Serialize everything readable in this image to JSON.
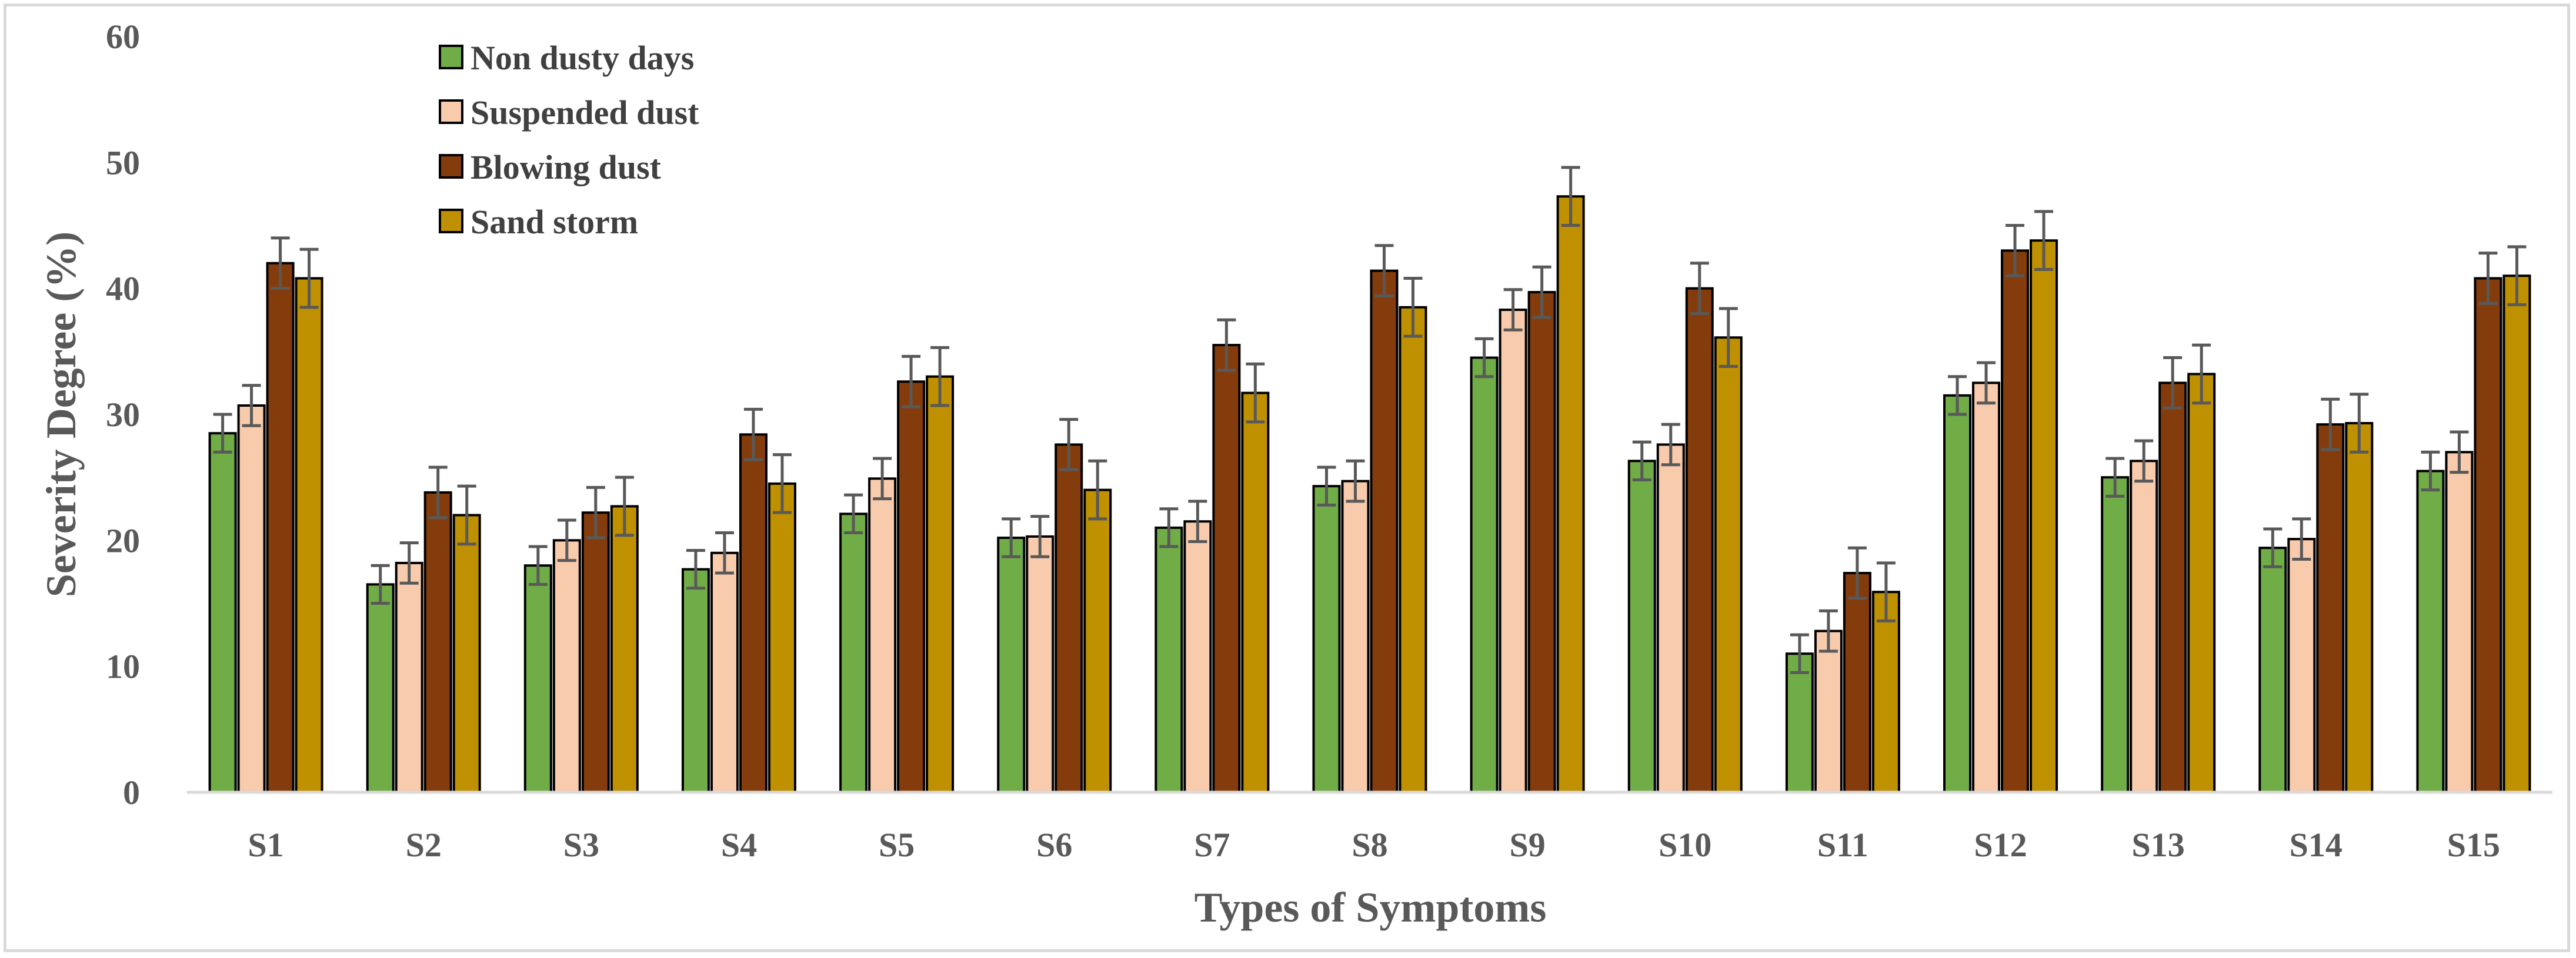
{
  "chart_data": {
    "type": "bar",
    "title": "",
    "xlabel": "Types of Symptoms",
    "ylabel": "Severity Degree (%)",
    "ylim": [
      0,
      60
    ],
    "yticks": [
      0,
      10,
      20,
      30,
      40,
      50,
      60
    ],
    "grid": false,
    "legend_position": "top-left",
    "categories": [
      "S1",
      "S2",
      "S3",
      "S4",
      "S5",
      "S6",
      "S7",
      "S8",
      "S9",
      "S10",
      "S11",
      "S12",
      "S13",
      "S14",
      "S15"
    ],
    "series": [
      {
        "name": "Non dusty days",
        "color": "#70ad47",
        "values": [
          28.5,
          16.5,
          18.0,
          17.7,
          22.1,
          20.2,
          21.0,
          24.3,
          34.5,
          26.3,
          11.0,
          31.5,
          25.0,
          19.4,
          25.5
        ],
        "errors": [
          1.5,
          1.5,
          1.5,
          1.5,
          1.5,
          1.5,
          1.5,
          1.5,
          1.5,
          1.5,
          1.5,
          1.5,
          1.5,
          1.5,
          1.5
        ]
      },
      {
        "name": "Suspended dust",
        "color": "#f8cbad",
        "values": [
          30.7,
          18.2,
          20.0,
          19.0,
          24.9,
          20.3,
          21.5,
          24.7,
          38.3,
          27.6,
          12.8,
          32.5,
          26.3,
          20.1,
          27.0
        ],
        "errors": [
          1.6,
          1.6,
          1.6,
          1.6,
          1.6,
          1.6,
          1.6,
          1.6,
          1.6,
          1.6,
          1.6,
          1.6,
          1.6,
          1.6,
          1.6
        ]
      },
      {
        "name": "Blowing dust",
        "color": "#843c0c",
        "values": [
          42.0,
          23.8,
          22.2,
          28.4,
          32.6,
          27.6,
          35.5,
          41.4,
          39.7,
          40.0,
          17.4,
          43.0,
          32.5,
          29.2,
          40.8
        ],
        "errors": [
          2.0,
          2.0,
          2.0,
          2.0,
          2.0,
          2.0,
          2.0,
          2.0,
          2.0,
          2.0,
          2.0,
          2.0,
          2.0,
          2.0,
          2.0
        ]
      },
      {
        "name": "Sand storm",
        "color": "#bf9000",
        "values": [
          40.8,
          22.0,
          22.7,
          24.5,
          33.0,
          24.0,
          31.7,
          38.5,
          47.3,
          36.1,
          15.9,
          43.8,
          33.2,
          29.3,
          41.0
        ],
        "errors": [
          2.3,
          2.3,
          2.3,
          2.3,
          2.3,
          2.3,
          2.3,
          2.3,
          2.3,
          2.3,
          2.3,
          2.3,
          2.3,
          2.3,
          2.3
        ]
      }
    ]
  }
}
